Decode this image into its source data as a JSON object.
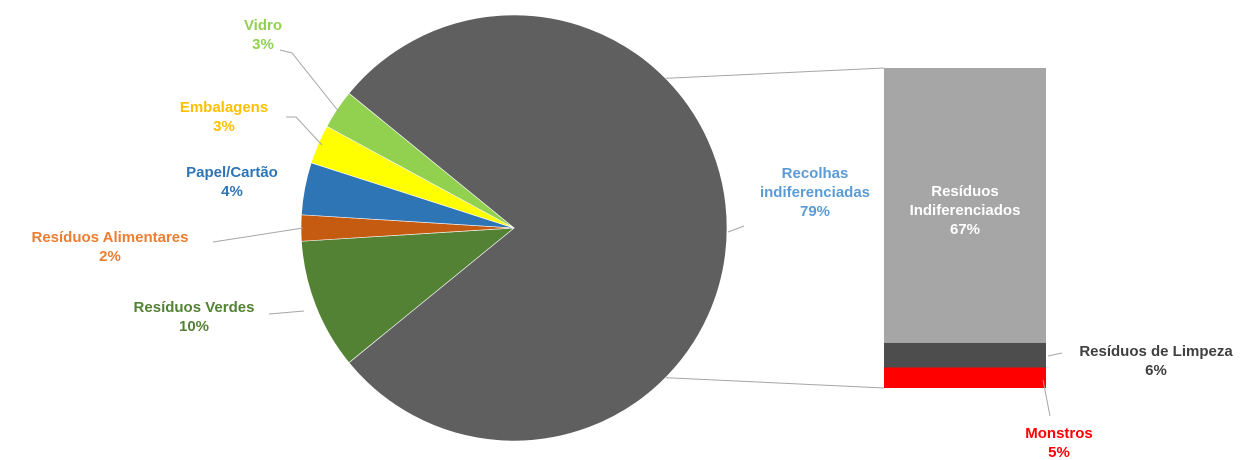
{
  "chart_data": {
    "type": "bar-of-pie",
    "pie": {
      "slices": [
        {
          "name": "Recolhas indiferenciadas",
          "name_lines": [
            "Recolhas",
            "indiferenciadas"
          ],
          "value": 79,
          "value_label": "79%",
          "color": "#5f5f5f",
          "label_color": "#5b9bd5"
        },
        {
          "name": "Resíduos Verdes",
          "name_lines": [
            "Resíduos Verdes"
          ],
          "value": 10,
          "value_label": "10%",
          "color": "#548235",
          "label_color": "#548235"
        },
        {
          "name": "Resíduos Alimentares",
          "name_lines": [
            "Resíduos Alimentares"
          ],
          "value": 2,
          "value_label": "2%",
          "color": "#c55a11",
          "label_color": "#ed7d31"
        },
        {
          "name": "Papel/Cartão",
          "name_lines": [
            "Papel/Cartão"
          ],
          "value": 4,
          "value_label": "4%",
          "color": "#2e75b6",
          "label_color": "#2e75b6"
        },
        {
          "name": "Embalagens",
          "name_lines": [
            "Embalagens"
          ],
          "value": 3,
          "value_label": "3%",
          "color": "#ffff00",
          "label_color": "#ffc000"
        },
        {
          "name": "Vidro",
          "name_lines": [
            "Vidro"
          ],
          "value": 3,
          "value_label": "3%",
          "color": "#92d050",
          "label_color": "#92d050"
        }
      ]
    },
    "bar": {
      "segments": [
        {
          "name": "Resíduos Indiferenciados",
          "name_lines": [
            "Resíduos",
            "Indiferenciados"
          ],
          "value": 67,
          "value_label": "67%",
          "color": "#a6a6a6",
          "label_color": "#ffffff"
        },
        {
          "name": "Resíduos de Limpeza",
          "name_lines": [
            "Resíduos de Limpeza"
          ],
          "value": 6,
          "value_label": "6%",
          "color": "#4d4d4d",
          "label_color": "#404040"
        },
        {
          "name": "Monstros",
          "name_lines": [
            "Monstros"
          ],
          "value": 5,
          "value_label": "5%",
          "color": "#ff0000",
          "label_color": "#ff0000"
        }
      ]
    }
  }
}
